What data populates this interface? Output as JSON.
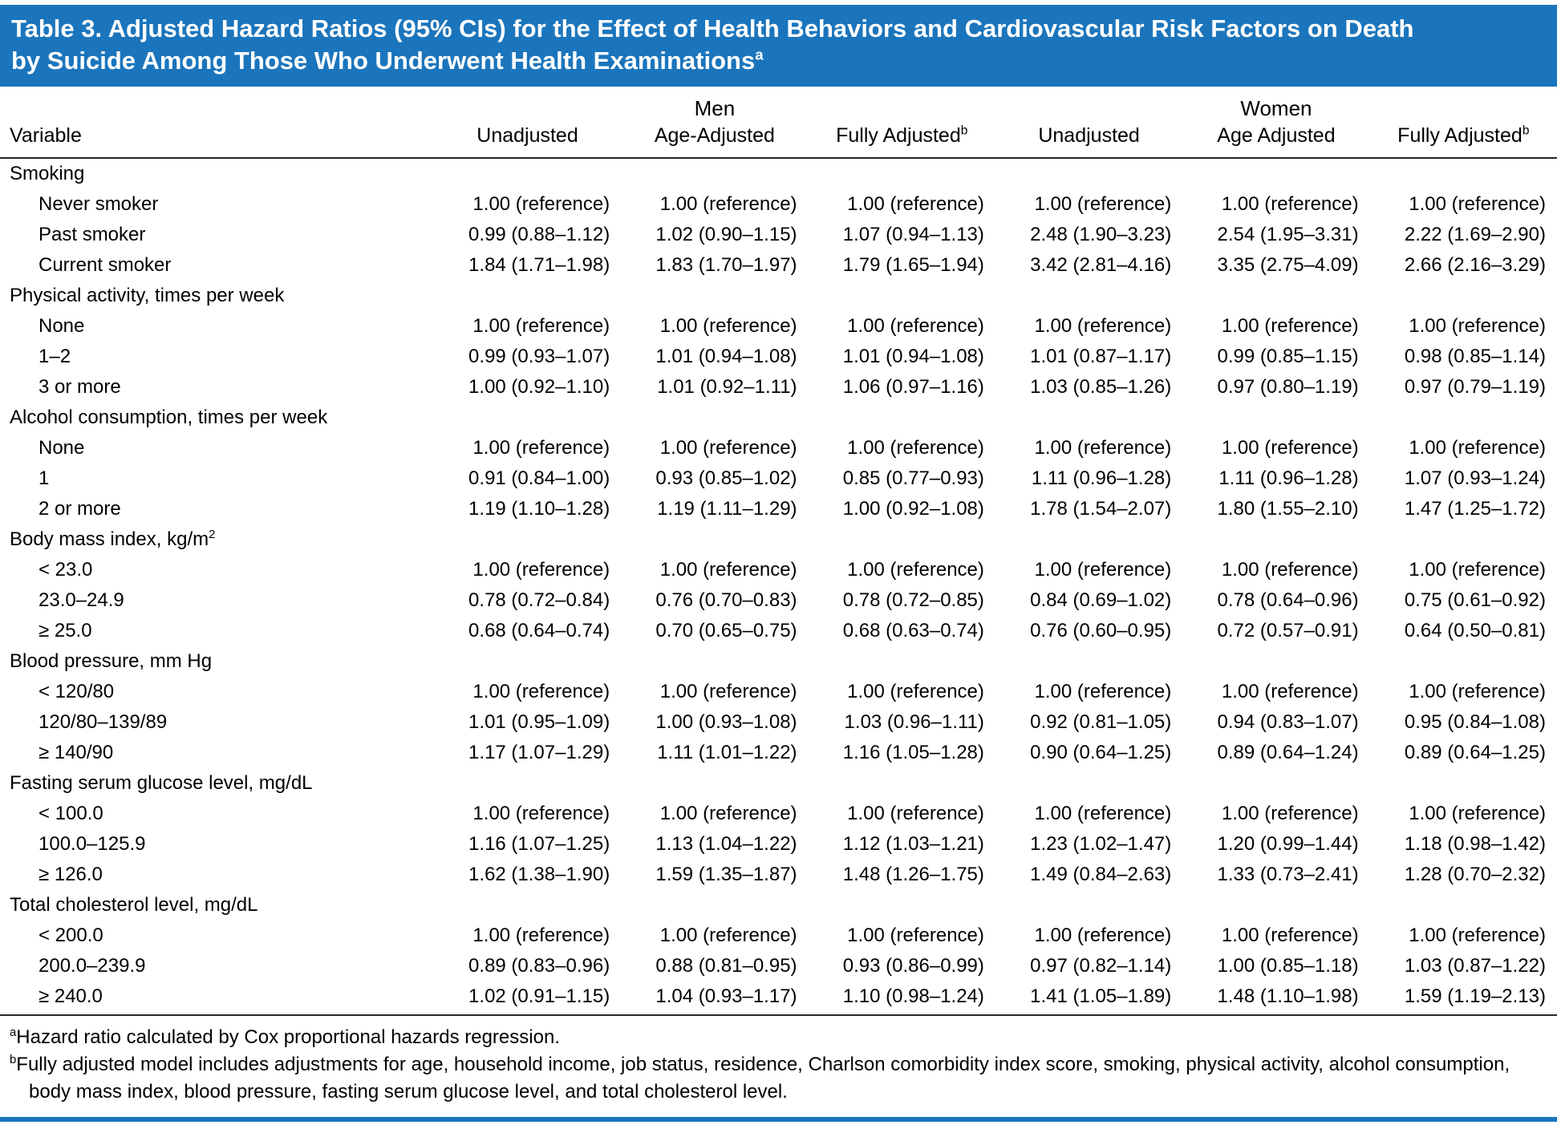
{
  "colors": {
    "banner_background": "#1B75BC",
    "banner_text": "#FFFFFF",
    "body_text": "#000000",
    "rule_dark": "#282828",
    "rule_blue": "#1B75BC"
  },
  "title": {
    "line1": "Table 3. Adjusted Hazard Ratios (95% CIs) for the Effect of Health Behaviors and Cardiovascular Risk Factors on Death",
    "line2": "by Suicide Among Those Who Underwent Health Examinations",
    "sup": "a"
  },
  "column_groups": [
    {
      "label": "Men"
    },
    {
      "label": "Women"
    }
  ],
  "columns": [
    {
      "label": "Variable"
    },
    {
      "label": "Unadjusted"
    },
    {
      "label": "Age-Adjusted"
    },
    {
      "label": "Fully Adjusted",
      "sup": "b"
    },
    {
      "label": "Unadjusted"
    },
    {
      "label": "Age Adjusted"
    },
    {
      "label": "Fully Adjusted",
      "sup": "b"
    }
  ],
  "sections": [
    {
      "header": "Smoking",
      "rows": [
        {
          "label": "Never smoker",
          "values": [
            "1.00 (reference)",
            "1.00 (reference)",
            "1.00 (reference)",
            "1.00 (reference)",
            "1.00 (reference)",
            "1.00 (reference)"
          ]
        },
        {
          "label": "Past smoker",
          "values": [
            "0.99 (0.88–1.12)",
            "1.02 (0.90–1.15)",
            "1.07 (0.94–1.13)",
            "2.48 (1.90–3.23)",
            "2.54 (1.95–3.31)",
            "2.22 (1.69–2.90)"
          ]
        },
        {
          "label": "Current smoker",
          "values": [
            "1.84 (1.71–1.98)",
            "1.83 (1.70–1.97)",
            "1.79 (1.65–1.94)",
            "3.42 (2.81–4.16)",
            "3.35 (2.75–4.09)",
            "2.66 (2.16–3.29)"
          ]
        }
      ]
    },
    {
      "header": "Physical activity, times per week",
      "rows": [
        {
          "label": "None",
          "values": [
            "1.00 (reference)",
            "1.00 (reference)",
            "1.00 (reference)",
            "1.00 (reference)",
            "1.00 (reference)",
            "1.00 (reference)"
          ]
        },
        {
          "label": "1–2",
          "values": [
            "0.99 (0.93–1.07)",
            "1.01 (0.94–1.08)",
            "1.01 (0.94–1.08)",
            "1.01 (0.87–1.17)",
            "0.99 (0.85–1.15)",
            "0.98 (0.85–1.14)"
          ]
        },
        {
          "label": "3 or more",
          "values": [
            "1.00 (0.92–1.10)",
            "1.01 (0.92–1.11)",
            "1.06 (0.97–1.16)",
            "1.03 (0.85–1.26)",
            "0.97 (0.80–1.19)",
            "0.97 (0.79–1.19)"
          ]
        }
      ]
    },
    {
      "header": "Alcohol consumption, times per week",
      "rows": [
        {
          "label": "None",
          "values": [
            "1.00 (reference)",
            "1.00 (reference)",
            "1.00 (reference)",
            "1.00 (reference)",
            "1.00 (reference)",
            "1.00 (reference)"
          ]
        },
        {
          "label": "1",
          "values": [
            "0.91 (0.84–1.00)",
            "0.93 (0.85–1.02)",
            "0.85 (0.77–0.93)",
            "1.11 (0.96–1.28)",
            "1.11 (0.96–1.28)",
            "1.07 (0.93–1.24)"
          ]
        },
        {
          "label": "2 or more",
          "values": [
            "1.19 (1.10–1.28)",
            "1.19 (1.11–1.29)",
            "1.00 (0.92–1.08)",
            "1.78 (1.54–2.07)",
            "1.80 (1.55–2.10)",
            "1.47 (1.25–1.72)"
          ]
        }
      ]
    },
    {
      "header": "Body mass index, kg/m",
      "header_sup": "2",
      "rows": [
        {
          "label": "< 23.0",
          "values": [
            "1.00 (reference)",
            "1.00 (reference)",
            "1.00 (reference)",
            "1.00 (reference)",
            "1.00 (reference)",
            "1.00 (reference)"
          ]
        },
        {
          "label": "23.0–24.9",
          "values": [
            "0.78 (0.72–0.84)",
            "0.76 (0.70–0.83)",
            "0.78 (0.72–0.85)",
            "0.84 (0.69–1.02)",
            "0.78 (0.64–0.96)",
            "0.75 (0.61–0.92)"
          ]
        },
        {
          "label": "≥ 25.0",
          "values": [
            "0.68 (0.64–0.74)",
            "0.70 (0.65–0.75)",
            "0.68 (0.63–0.74)",
            "0.76 (0.60–0.95)",
            "0.72 (0.57–0.91)",
            "0.64 (0.50–0.81)"
          ]
        }
      ]
    },
    {
      "header": "Blood pressure, mm Hg",
      "rows": [
        {
          "label": "< 120/80",
          "values": [
            "1.00 (reference)",
            "1.00 (reference)",
            "1.00 (reference)",
            "1.00 (reference)",
            "1.00 (reference)",
            "1.00 (reference)"
          ]
        },
        {
          "label": "120/80–139/89",
          "values": [
            "1.01 (0.95–1.09)",
            "1.00 (0.93–1.08)",
            "1.03 (0.96–1.11)",
            "0.92 (0.81–1.05)",
            "0.94 (0.83–1.07)",
            "0.95 (0.84–1.08)"
          ]
        },
        {
          "label": "≥ 140/90",
          "values": [
            "1.17 (1.07–1.29)",
            "1.11 (1.01–1.22)",
            "1.16 (1.05–1.28)",
            "0.90 (0.64–1.25)",
            "0.89 (0.64–1.24)",
            "0.89 (0.64–1.25)"
          ]
        }
      ]
    },
    {
      "header": "Fasting serum glucose level, mg/dL",
      "rows": [
        {
          "label": "< 100.0",
          "values": [
            "1.00 (reference)",
            "1.00 (reference)",
            "1.00 (reference)",
            "1.00 (reference)",
            "1.00 (reference)",
            "1.00 (reference)"
          ]
        },
        {
          "label": "100.0–125.9",
          "values": [
            "1.16 (1.07–1.25)",
            "1.13 (1.04–1.22)",
            "1.12 (1.03–1.21)",
            "1.23 (1.02–1.47)",
            "1.20 (0.99–1.44)",
            "1.18 (0.98–1.42)"
          ]
        },
        {
          "label": "≥ 126.0",
          "values": [
            "1.62 (1.38–1.90)",
            "1.59 (1.35–1.87)",
            "1.48 (1.26–1.75)",
            "1.49 (0.84–2.63)",
            "1.33 (0.73–2.41)",
            "1.28 (0.70–2.32)"
          ]
        }
      ]
    },
    {
      "header": "Total cholesterol level, mg/dL",
      "rows": [
        {
          "label": "< 200.0",
          "values": [
            "1.00 (reference)",
            "1.00 (reference)",
            "1.00 (reference)",
            "1.00 (reference)",
            "1.00 (reference)",
            "1.00 (reference)"
          ]
        },
        {
          "label": "200.0–239.9",
          "values": [
            "0.89 (0.83–0.96)",
            "0.88 (0.81–0.95)",
            "0.93 (0.86–0.99)",
            "0.97 (0.82–1.14)",
            "1.00 (0.85–1.18)",
            "1.03 (0.87–1.22)"
          ]
        },
        {
          "label": "≥ 240.0",
          "values": [
            "1.02 (0.91–1.15)",
            "1.04 (0.93–1.17)",
            "1.10 (0.98–1.24)",
            "1.41 (1.05–1.89)",
            "1.48 (1.10–1.98)",
            "1.59 (1.19–2.13)"
          ]
        }
      ]
    }
  ],
  "footnotes": [
    {
      "sup": "a",
      "text": "Hazard ratio calculated by Cox proportional hazards regression."
    },
    {
      "sup": "b",
      "text": "Fully adjusted model includes adjustments for age, household income, job status, residence, Charlson comorbidity index score, smoking, physical activity, alcohol consumption, body mass index, blood pressure, fasting serum glucose level, and total cholesterol level."
    }
  ]
}
